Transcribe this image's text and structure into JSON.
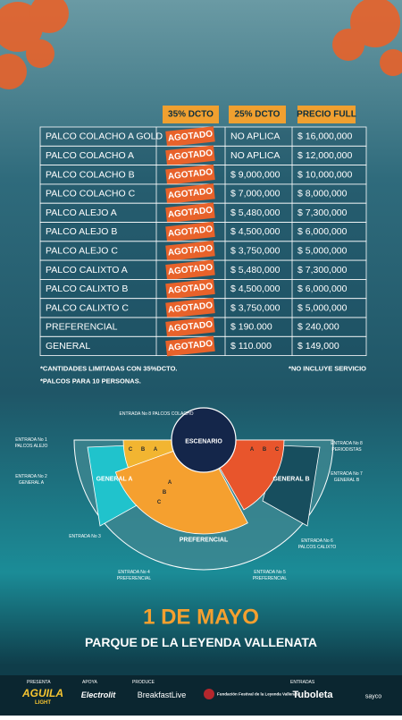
{
  "header": {
    "columns": [
      "35% DCTO",
      "25% DCTO",
      "PRECIO FULL"
    ]
  },
  "table": {
    "rows": [
      [
        "PALCO COLACHO A GOLD",
        "AGOTADO",
        "NO APLICA",
        "$ 16,000,000"
      ],
      [
        "PALCO COLACHO A",
        "AGOTADO",
        "NO APLICA",
        "$ 12,000,000"
      ],
      [
        "PALCO COLACHO B",
        "AGOTADO",
        "$ 9,000,000",
        "$ 10,000,000"
      ],
      [
        "PALCO COLACHO C",
        "AGOTADO",
        "$ 7,000,000",
        "$ 8,000,000"
      ],
      [
        "PALCO ALEJO A",
        "AGOTADO",
        "$ 5,480,000",
        "$ 7,300,000"
      ],
      [
        "PALCO ALEJO B",
        "AGOTADO",
        "$ 4,500,000",
        "$ 6,000,000"
      ],
      [
        "PALCO ALEJO C",
        "AGOTADO",
        "$ 3,750,000",
        "$ 5,000,000"
      ],
      [
        "PALCO CALIXTO A",
        "AGOTADO",
        "$ 5,480,000",
        "$ 7,300,000"
      ],
      [
        "PALCO CALIXTO B",
        "AGOTADO",
        "$ 4,500,000",
        "$ 6,000,000"
      ],
      [
        "PALCO CALIXTO C",
        "AGOTADO",
        "$ 3,750,000",
        "$ 5,000,000"
      ],
      [
        "PREFERENCIAL",
        "AGOTADO",
        "$ 190.000",
        "$ 240,000"
      ],
      [
        "GENERAL",
        "AGOTADO",
        "$ 110.000",
        "$ 149,000"
      ]
    ]
  },
  "notes": {
    "left": [
      "*CANTIDADES LIMITADAS CON 35%DCTO.",
      "*PALCOS PARA 10 PERSONAS."
    ],
    "right": "*NO INCLUYE SERVICIO"
  },
  "map": {
    "stage": "ESCENARIO",
    "general_a": "GENERAL A",
    "general_b": "GENERAL B",
    "preferencial": "PREFERENCIAL",
    "letters_left": [
      "C",
      "B",
      "A"
    ],
    "letters_right": [
      "A",
      "B",
      "C"
    ],
    "letters_front": [
      "A",
      "B",
      "C"
    ],
    "entrances": [
      {
        "label": "ENTRADA No 8 PALCOS COLACHO"
      },
      {
        "label": "ENTRADA No 1",
        "sub": "PALCOS ALEJO"
      },
      {
        "label": "ENTRADA No 2",
        "sub": "GENERAL A"
      },
      {
        "label": "ENTRADA No 3"
      },
      {
        "label": "ENTRADA No 4",
        "sub": "PREFERENCIAL"
      },
      {
        "label": "ENTRADA No 5",
        "sub": "PREFERENCIAL"
      },
      {
        "label": "ENTRADA No 6",
        "sub": "PALCOS CALIXTO"
      },
      {
        "label": "ENTRADA No 7",
        "sub": "GENERAL B"
      },
      {
        "label": "ENTRADA No 8",
        "sub": "PERIODISTAS"
      }
    ]
  },
  "event": {
    "date": "1 DE MAYO",
    "venue": "PARQUE DE LA LEYENDA VALLENATA"
  },
  "sponsors": {
    "roles": [
      "PRESENTA",
      "APOYA",
      "PRODUCE",
      "ENTRADAS"
    ],
    "logos": [
      "AGUILA",
      "LIGHT",
      "Electrolit",
      "BreakfastLive",
      "Fundación Festival de la Leyenda Vallenata",
      "Tuboleta",
      "sayco"
    ]
  }
}
